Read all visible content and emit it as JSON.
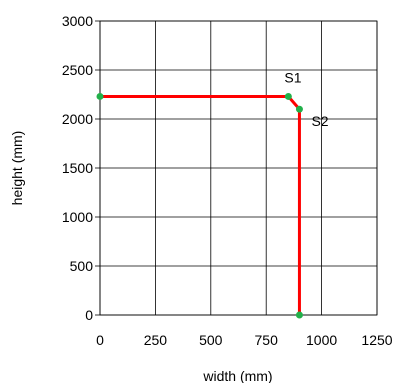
{
  "chart_data": {
    "type": "line",
    "xlabel": "width (mm)",
    "ylabel": "height (mm)",
    "xlim": [
      0,
      1250
    ],
    "ylim": [
      0,
      3000
    ],
    "x_ticks": [
      0,
      250,
      500,
      750,
      1000,
      1250
    ],
    "y_ticks": [
      0,
      500,
      1000,
      1500,
      2000,
      2500,
      3000
    ],
    "grid": true,
    "series": [
      {
        "x": [
          0,
          850,
          900,
          900
        ],
        "y": [
          2230,
          2230,
          2100,
          0
        ],
        "line_color": "#ff0000",
        "marker_color": "#22b04a"
      }
    ],
    "annotations": [
      {
        "text": "S1",
        "x": 850,
        "y": 2230
      },
      {
        "text": "S2",
        "x": 900,
        "y": 2100
      }
    ]
  }
}
